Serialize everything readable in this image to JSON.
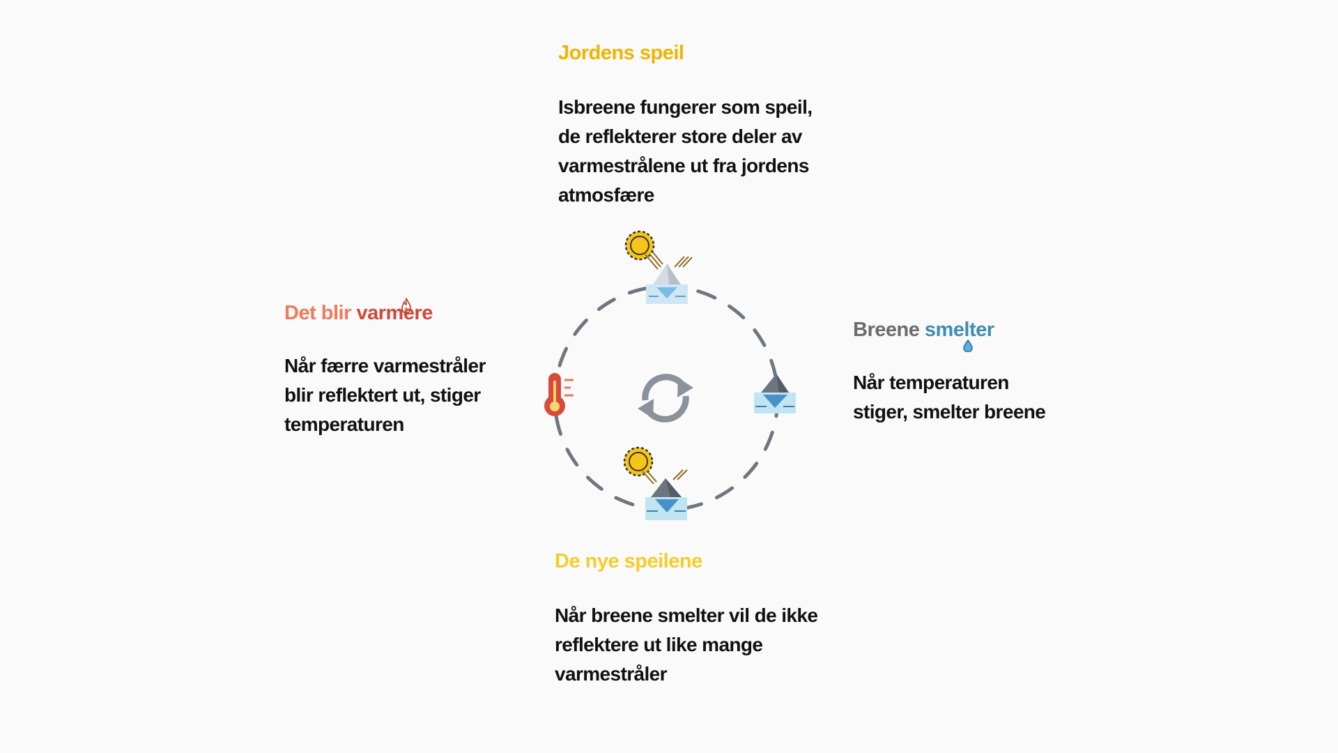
{
  "top": {
    "heading": "Jordens speil",
    "body": "Isbreene fungerer som speil, de reflekterer store deler av varmestrålene ut fra jordens atmosfære",
    "color": "#f0b400"
  },
  "right": {
    "heading_part1": "Breene",
    "heading_part2": "smelter",
    "body": "Når temperaturen stiger, smelter breene",
    "color1": "#6b6b6b",
    "color2": "#3d8bb8"
  },
  "bottom": {
    "heading": "De nye speilene",
    "body": "Når breene smelter vil de ikke reflektere ut like mange varmestråler",
    "color": "#f5cd2a"
  },
  "left": {
    "heading_part1": "Det blir",
    "heading_part2": "varmere",
    "body": "Når færre varmestråler blir reflektert ut, stiger temperaturen",
    "color1": "#f07a5a",
    "color2": "#d0483a"
  },
  "icons": {
    "top": "sun-and-white-iceberg-icon",
    "right": "melting-iceberg-icon",
    "bottom": "sun-and-dark-iceberg-icon",
    "left": "thermometer-icon",
    "center": "cycle-arrows-icon",
    "heading_left": "flame-icon",
    "heading_right": "water-drop-icon"
  },
  "diagram": {
    "circle_color": "#707680",
    "cycle_arrow_color": "#8a929c"
  }
}
